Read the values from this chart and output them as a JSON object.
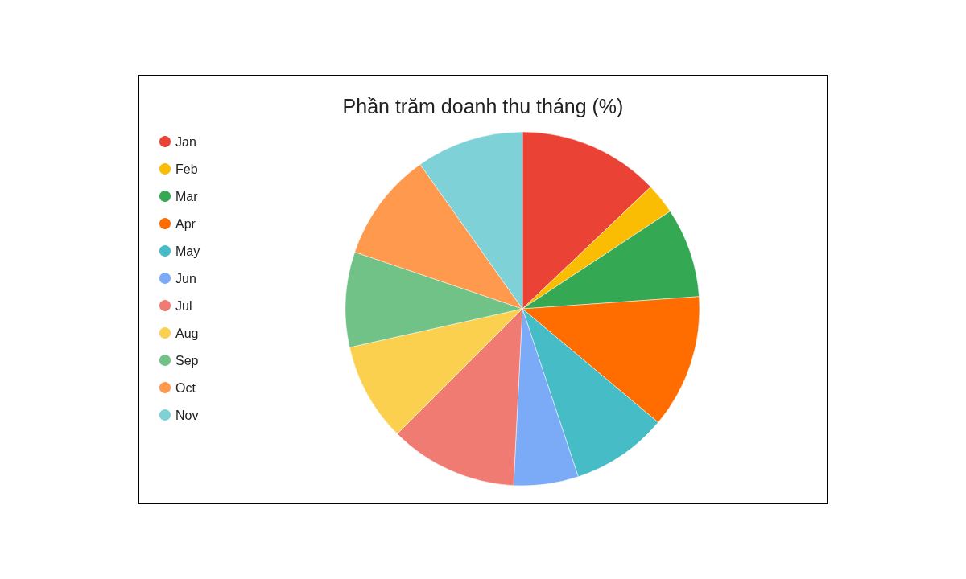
{
  "chart_data": {
    "type": "pie",
    "title": "Phần trăm doanh thu tháng (%)",
    "categories": [
      "Jan",
      "Feb",
      "Mar",
      "Apr",
      "May",
      "Jun",
      "Jul",
      "Aug",
      "Sep",
      "Oct",
      "Nov"
    ],
    "values": [
      12.9,
      2.8,
      8.2,
      12.2,
      8.8,
      5.9,
      11.7,
      9.0,
      8.7,
      10.0,
      9.8
    ],
    "colors": [
      "#ea4335",
      "#fbbc04",
      "#34a853",
      "#ff6d01",
      "#46bdc6",
      "#7baaf7",
      "#f07b72",
      "#fcd04f",
      "#71c287",
      "#ff994d",
      "#7ed1d7"
    ],
    "legend": "top left"
  }
}
